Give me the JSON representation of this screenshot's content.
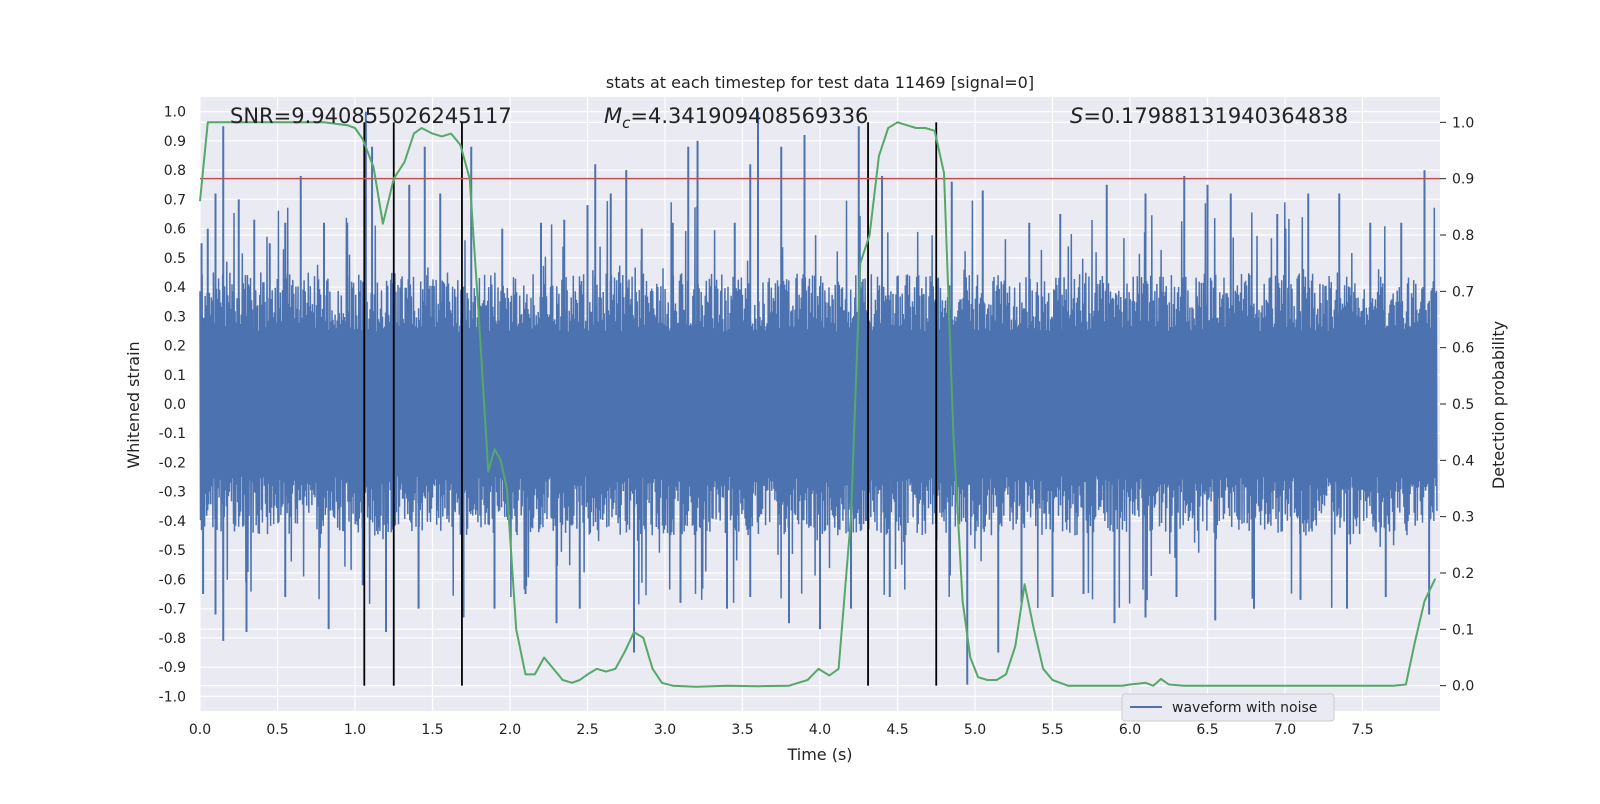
{
  "chart_data": {
    "type": "line",
    "title": "stats at each timestep for test data 11469 [signal=0]",
    "xlabel": "Time (s)",
    "ylabel_left": "Whitened strain",
    "ylabel_right": "Detection probability",
    "xlim": [
      0.0,
      8.0
    ],
    "ylim_left": [
      -1.05,
      1.05
    ],
    "ylim_right": [
      -0.045,
      1.045
    ],
    "x_ticks": [
      "0.0",
      "0.5",
      "1.0",
      "1.5",
      "2.0",
      "2.5",
      "3.0",
      "3.5",
      "4.0",
      "4.5",
      "5.0",
      "5.5",
      "6.0",
      "6.5",
      "7.0",
      "7.5"
    ],
    "y_left_ticks": [
      "1.0",
      "0.9",
      "0.8",
      "0.7",
      "0.6",
      "0.5",
      "0.4",
      "0.3",
      "0.2",
      "0.1",
      "0.0",
      "-0.1",
      "-0.2",
      "-0.3",
      "-0.4",
      "-0.5",
      "-0.6",
      "-0.7",
      "-0.8",
      "-0.9",
      "-1.0"
    ],
    "y_right_ticks": [
      "1.0",
      "0.9",
      "0.8",
      "0.7",
      "0.6",
      "0.5",
      "0.4",
      "0.3",
      "0.2",
      "0.1",
      "0.0"
    ],
    "annotations": {
      "snr": "SNR=9.940855026245117",
      "mc_symbol": "M",
      "mc_sub": "c",
      "mc_value": "=4.341909408569336",
      "s_symbol": "S",
      "s_value": "=0.17988131940364838"
    },
    "threshold": {
      "value": 0.9,
      "axis": "right",
      "color": "#c44e52"
    },
    "event_lines": [
      1.06,
      1.25,
      1.69,
      4.31,
      4.75
    ],
    "waveform": {
      "name": "waveform with noise",
      "color": "#4c72b0",
      "typical_amplitude": 0.45,
      "peaks_up": [
        [
          0.01,
          0.55
        ],
        [
          0.05,
          0.6
        ],
        [
          0.1,
          0.72
        ],
        [
          0.15,
          0.95
        ],
        [
          0.25,
          0.7
        ],
        [
          0.35,
          0.63
        ],
        [
          0.45,
          0.55
        ],
        [
          0.55,
          0.62
        ],
        [
          0.65,
          0.78
        ],
        [
          0.8,
          0.62
        ],
        [
          0.95,
          0.62
        ],
        [
          1.07,
          1.0
        ],
        [
          1.11,
          0.88
        ],
        [
          1.35,
          0.75
        ],
        [
          1.45,
          0.88
        ],
        [
          1.55,
          0.72
        ],
        [
          1.75,
          0.88
        ],
        [
          1.95,
          0.6
        ],
        [
          2.2,
          0.62
        ],
        [
          2.35,
          0.63
        ],
        [
          2.5,
          0.68
        ],
        [
          2.55,
          0.82
        ],
        [
          2.65,
          0.72
        ],
        [
          2.75,
          0.8
        ],
        [
          2.85,
          0.6
        ],
        [
          3.05,
          0.62
        ],
        [
          3.15,
          0.88
        ],
        [
          3.21,
          0.9
        ],
        [
          3.45,
          0.62
        ],
        [
          3.55,
          0.82
        ],
        [
          3.6,
          1.0
        ],
        [
          3.75,
          0.88
        ],
        [
          3.9,
          0.92
        ],
        [
          4.25,
          0.95
        ],
        [
          4.4,
          0.78
        ],
        [
          4.85,
          0.76
        ],
        [
          5.05,
          0.73
        ],
        [
          5.35,
          0.62
        ],
        [
          5.55,
          0.65
        ],
        [
          5.85,
          0.75
        ],
        [
          6.1,
          0.72
        ],
        [
          6.35,
          0.78
        ],
        [
          6.5,
          0.75
        ],
        [
          6.65,
          0.72
        ],
        [
          6.95,
          0.65
        ],
        [
          7.15,
          0.72
        ],
        [
          7.35,
          0.72
        ],
        [
          7.55,
          0.62
        ],
        [
          7.75,
          0.62
        ],
        [
          7.9,
          0.8
        ]
      ],
      "peaks_down": [
        [
          0.02,
          -0.65
        ],
        [
          0.1,
          -0.72
        ],
        [
          0.15,
          -0.81
        ],
        [
          0.3,
          -0.78
        ],
        [
          0.55,
          -0.66
        ],
        [
          0.83,
          -0.77
        ],
        [
          1.05,
          -0.62
        ],
        [
          1.2,
          -0.78
        ],
        [
          1.41,
          -0.7
        ],
        [
          1.7,
          -0.73
        ],
        [
          1.9,
          -0.7
        ],
        [
          2.1,
          -0.65
        ],
        [
          2.3,
          -0.75
        ],
        [
          2.45,
          -0.7
        ],
        [
          2.8,
          -0.85
        ],
        [
          3.1,
          -0.68
        ],
        [
          3.4,
          -0.7
        ],
        [
          3.55,
          -0.66
        ],
        [
          3.8,
          -0.75
        ],
        [
          4.0,
          -0.77
        ],
        [
          4.2,
          -0.7
        ],
        [
          4.45,
          -0.66
        ],
        [
          4.75,
          -0.67
        ],
        [
          4.95,
          -0.96
        ],
        [
          5.15,
          -0.85
        ],
        [
          5.3,
          -0.68
        ],
        [
          5.5,
          -0.66
        ],
        [
          5.7,
          -0.65
        ],
        [
          5.9,
          -0.75
        ],
        [
          6.1,
          -0.73
        ],
        [
          6.3,
          -0.66
        ],
        [
          6.55,
          -0.74
        ],
        [
          6.8,
          -0.7
        ],
        [
          7.1,
          -0.67
        ],
        [
          7.4,
          -0.7
        ],
        [
          7.65,
          -0.66
        ],
        [
          7.93,
          -0.72
        ]
      ]
    },
    "probability": {
      "color": "#55a868",
      "x": [
        0.0,
        0.05,
        0.2,
        0.4,
        0.6,
        0.8,
        0.95,
        1.0,
        1.05,
        1.12,
        1.18,
        1.25,
        1.32,
        1.38,
        1.43,
        1.5,
        1.56,
        1.62,
        1.68,
        1.74,
        1.8,
        1.86,
        1.9,
        1.94,
        1.98,
        2.04,
        2.1,
        2.16,
        2.22,
        2.28,
        2.34,
        2.4,
        2.45,
        2.5,
        2.56,
        2.62,
        2.68,
        2.74,
        2.8,
        2.86,
        2.92,
        2.98,
        3.05,
        3.2,
        3.4,
        3.6,
        3.8,
        3.92,
        3.99,
        4.06,
        4.12,
        4.2,
        4.26,
        4.32,
        4.38,
        4.44,
        4.5,
        4.56,
        4.62,
        4.68,
        4.74,
        4.8,
        4.86,
        4.92,
        4.97,
        5.02,
        5.08,
        5.14,
        5.2,
        5.26,
        5.32,
        5.38,
        5.44,
        5.5,
        5.6,
        5.8,
        5.95,
        6.0,
        6.1,
        6.15,
        6.2,
        6.25,
        6.35,
        6.5,
        6.7,
        6.9,
        7.1,
        7.3,
        7.5,
        7.6,
        7.7,
        7.78,
        7.84,
        7.9,
        7.97
      ],
      "y": [
        0.86,
        1.0,
        1.0,
        1.0,
        1.0,
        1.0,
        0.995,
        0.99,
        0.97,
        0.92,
        0.82,
        0.9,
        0.93,
        0.98,
        0.99,
        0.98,
        0.975,
        0.98,
        0.96,
        0.9,
        0.65,
        0.38,
        0.42,
        0.4,
        0.35,
        0.1,
        0.02,
        0.02,
        0.05,
        0.03,
        0.01,
        0.005,
        0.01,
        0.02,
        0.03,
        0.025,
        0.03,
        0.06,
        0.095,
        0.085,
        0.03,
        0.005,
        0.0,
        -0.002,
        0.0,
        -0.001,
        0.0,
        0.01,
        0.03,
        0.018,
        0.03,
        0.3,
        0.75,
        0.8,
        0.94,
        0.99,
        1.0,
        0.995,
        0.99,
        0.99,
        0.985,
        0.91,
        0.45,
        0.15,
        0.05,
        0.015,
        0.01,
        0.01,
        0.02,
        0.07,
        0.18,
        0.1,
        0.03,
        0.01,
        0.0,
        0.0,
        0.0,
        0.002,
        0.005,
        0.0,
        0.012,
        0.002,
        0.0,
        0.0,
        0.0,
        0.0,
        0.0,
        0.0,
        0.0,
        0.0,
        0.0,
        0.002,
        0.08,
        0.15,
        0.19
      ]
    },
    "legend": {
      "label": "waveform with noise",
      "placement": "lower-right"
    }
  }
}
